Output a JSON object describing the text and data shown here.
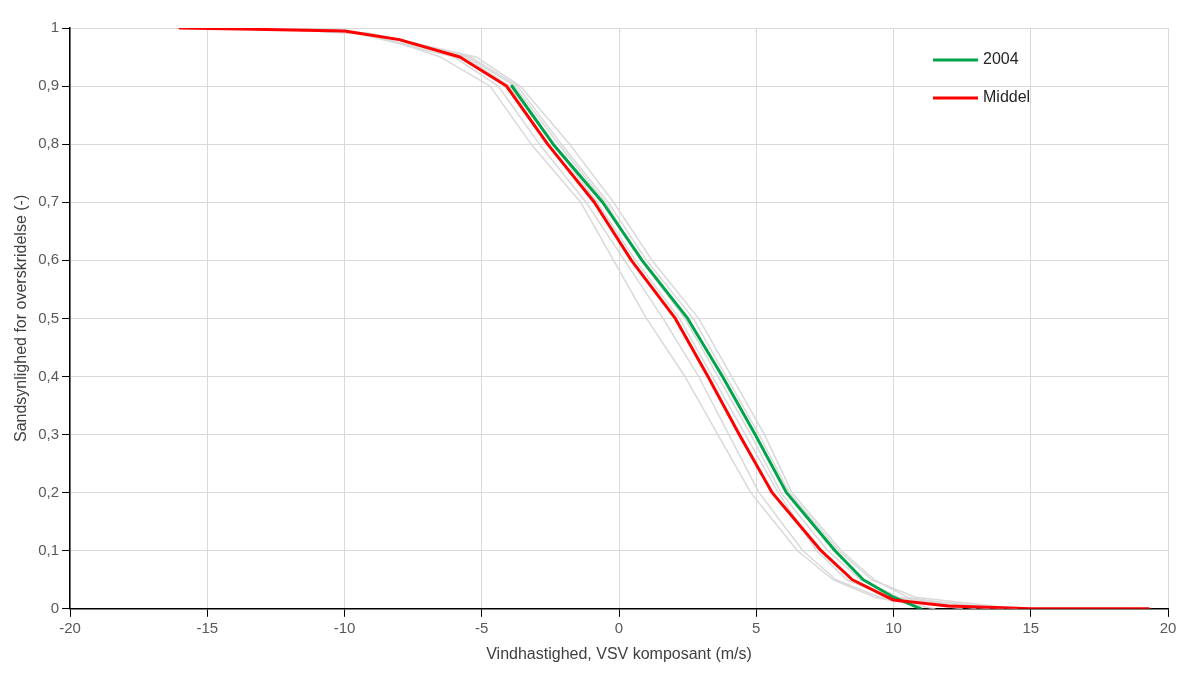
{
  "chart_data": {
    "type": "line",
    "xlabel": "Vindhastighed, VSV komposant (m/s)",
    "ylabel": "Sandsynlighed for overskridelse (-)",
    "xlim": [
      -20,
      20
    ],
    "xticks": [
      -20,
      -15,
      -10,
      -5,
      0,
      5,
      10,
      15,
      20
    ],
    "ylim": [
      0,
      1
    ],
    "yticks": [
      0,
      {
        "value": 0.1,
        "label": "0,1"
      },
      {
        "value": 0.2,
        "label": "0,2"
      },
      {
        "value": 0.3,
        "label": "0,3"
      },
      {
        "value": 0.4,
        "label": "0,4"
      },
      {
        "value": 0.5,
        "label": "0,5"
      },
      {
        "value": 0.6,
        "label": "0,6"
      },
      {
        "value": 0.7,
        "label": "0,7"
      },
      {
        "value": 0.8,
        "label": "0,8"
      },
      {
        "value": 0.9,
        "label": "0,9"
      },
      1
    ],
    "grid": true,
    "legend": "top right",
    "marker": "none",
    "line_style": "solid",
    "series": [
      {
        "color": "#d9d9d9",
        "x": [
          -12,
          -9,
          -6.5,
          -4.7,
          -3.2,
          -1.4,
          -0.2,
          1.0,
          2.4,
          3.6,
          4.8,
          6.5,
          7.8,
          9.3,
          11.5
        ],
        "values": [
          1,
          0.99,
          0.95,
          0.9,
          0.8,
          0.7,
          0.6,
          0.5,
          0.4,
          0.3,
          0.2,
          0.1,
          0.05,
          0.02,
          0
        ]
      },
      {
        "color": "#d9d9d9",
        "x": [
          -11.5,
          -9,
          -5.2,
          -3.6,
          -1.8,
          -0.2,
          1.2,
          2.9,
          4.1,
          5.3,
          6.3,
          8.1,
          9.3,
          10.5,
          13
        ],
        "values": [
          1,
          0.99,
          0.95,
          0.9,
          0.8,
          0.7,
          0.6,
          0.5,
          0.4,
          0.3,
          0.2,
          0.1,
          0.05,
          0.02,
          0
        ]
      },
      {
        "color": "#d9d9d9",
        "x": [
          -12.5,
          -9.5,
          -6,
          -4.4,
          -2.9,
          -1.2,
          0.2,
          1.6,
          2.9,
          4.0,
          5.1,
          6.7,
          7.9,
          9.5,
          12.5
        ],
        "values": [
          1,
          0.99,
          0.95,
          0.9,
          0.8,
          0.7,
          0.6,
          0.5,
          0.4,
          0.3,
          0.2,
          0.1,
          0.05,
          0.02,
          0
        ]
      },
      {
        "color": "#d9d9d9",
        "x": [
          -11,
          -9,
          -5.5,
          -3.8,
          -2.2,
          -0.5,
          0.8,
          2.4,
          3.6,
          4.8,
          5.9,
          7.6,
          8.8,
          10.2,
          14
        ],
        "values": [
          1,
          0.99,
          0.95,
          0.9,
          0.8,
          0.7,
          0.6,
          0.5,
          0.4,
          0.3,
          0.2,
          0.1,
          0.05,
          0.02,
          0
        ]
      },
      {
        "color": "#d9d9d9",
        "x": [
          -13,
          -9.5,
          -5.6,
          -4,
          -2.4,
          -0.8,
          0.6,
          2.2,
          3.4,
          4.6,
          5.8,
          7.2,
          8.3,
          9.8,
          13.5
        ],
        "values": [
          1,
          0.99,
          0.95,
          0.9,
          0.8,
          0.7,
          0.6,
          0.5,
          0.4,
          0.3,
          0.2,
          0.1,
          0.05,
          0.02,
          0
        ]
      },
      {
        "color": "#d9d9d9",
        "x": [
          -13.5,
          -9,
          -5.4,
          -3.7,
          -2.1,
          -0.4,
          1.0,
          2.7,
          3.9,
          5.1,
          6.2,
          8.0,
          9.2,
          10.8,
          14.5
        ],
        "values": [
          1,
          0.99,
          0.95,
          0.9,
          0.8,
          0.7,
          0.6,
          0.5,
          0.4,
          0.3,
          0.2,
          0.1,
          0.05,
          0.02,
          0
        ]
      },
      {
        "name": "2004",
        "color": "#00a44a",
        "x": [
          -3.9,
          -2.4,
          -0.6,
          0.84,
          2.5,
          3.77,
          4.96,
          6.1,
          7.87,
          8.9,
          10,
          11
        ],
        "values": [
          0.9,
          0.8,
          0.7,
          0.6,
          0.5,
          0.4,
          0.3,
          0.2,
          0.1,
          0.05,
          0.02,
          0
        ]
      },
      {
        "name": "Middel",
        "color": "#ff0000",
        "x": [
          -16,
          -10,
          -8,
          -5.8,
          -4.1,
          -2.6,
          -0.9,
          0.45,
          2.05,
          3.24,
          4.38,
          5.58,
          7.36,
          8.5,
          10,
          12,
          15,
          19.3
        ],
        "values": [
          1,
          0.995,
          0.98,
          0.95,
          0.9,
          0.8,
          0.7,
          0.6,
          0.5,
          0.4,
          0.3,
          0.2,
          0.1,
          0.05,
          0.015,
          0.005,
          0,
          0
        ]
      }
    ]
  }
}
